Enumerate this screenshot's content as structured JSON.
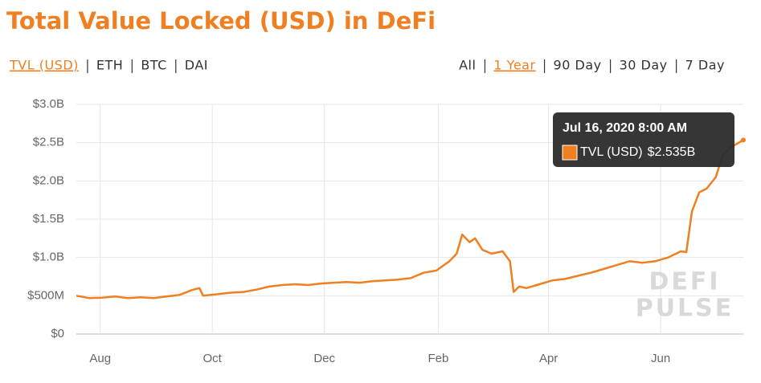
{
  "chart_data": {
    "type": "line",
    "title": "Total Value Locked (USD) in DeFi",
    "metric_tabs": [
      "TVL (USD)",
      "ETH",
      "BTC",
      "DAI"
    ],
    "active_metric_tab": 0,
    "range_tabs": [
      "All",
      "1 Year",
      "90 Day",
      "30 Day",
      "7 Day"
    ],
    "active_range_tab": 1,
    "watermark": [
      "DEFI",
      "PULSE"
    ],
    "grid": true,
    "x": [
      "2019-07-19",
      "2019-07-26",
      "2019-08-02",
      "2019-08-09",
      "2019-08-16",
      "2019-08-23",
      "2019-08-30",
      "2019-09-06",
      "2019-09-13",
      "2019-09-20",
      "2019-09-24",
      "2019-09-26",
      "2019-10-04",
      "2019-10-11",
      "2019-10-18",
      "2019-10-25",
      "2019-11-01",
      "2019-11-08",
      "2019-11-15",
      "2019-11-22",
      "2019-11-29",
      "2019-12-06",
      "2019-12-13",
      "2019-12-20",
      "2019-12-27",
      "2020-01-03",
      "2020-01-10",
      "2020-01-17",
      "2020-01-24",
      "2020-01-31",
      "2020-02-07",
      "2020-02-11",
      "2020-02-14",
      "2020-02-18",
      "2020-02-21",
      "2020-02-25",
      "2020-03-01",
      "2020-03-07",
      "2020-03-11",
      "2020-03-13",
      "2020-03-16",
      "2020-03-20",
      "2020-03-27",
      "2020-04-03",
      "2020-04-10",
      "2020-04-17",
      "2020-04-24",
      "2020-05-01",
      "2020-05-08",
      "2020-05-15",
      "2020-05-22",
      "2020-05-29",
      "2020-06-05",
      "2020-06-12",
      "2020-06-15",
      "2020-06-18",
      "2020-06-22",
      "2020-06-26",
      "2020-07-01",
      "2020-07-05",
      "2020-07-10",
      "2020-07-16"
    ],
    "series": [
      {
        "name": "TVL (USD)",
        "color": "#f07f22",
        "values": [
          500000000,
          470000000,
          475000000,
          490000000,
          470000000,
          480000000,
          470000000,
          490000000,
          510000000,
          575000000,
          600000000,
          500000000,
          520000000,
          540000000,
          550000000,
          580000000,
          620000000,
          640000000,
          650000000,
          640000000,
          660000000,
          670000000,
          680000000,
          670000000,
          690000000,
          700000000,
          710000000,
          730000000,
          800000000,
          830000000,
          950000000,
          1050000000,
          1300000000,
          1200000000,
          1250000000,
          1100000000,
          1050000000,
          1080000000,
          950000000,
          550000000,
          620000000,
          600000000,
          650000000,
          700000000,
          720000000,
          760000000,
          800000000,
          850000000,
          900000000,
          950000000,
          930000000,
          950000000,
          1000000000,
          1080000000,
          1070000000,
          1600000000,
          1850000000,
          1900000000,
          2050000000,
          2350000000,
          2450000000,
          2535000000
        ]
      }
    ],
    "xlim": [
      "2019-07-19",
      "2020-07-16"
    ],
    "xticks": [
      {
        "value": "2019-08-01",
        "label": "Aug"
      },
      {
        "value": "2019-10-01",
        "label": "Oct"
      },
      {
        "value": "2019-12-01",
        "label": "Dec"
      },
      {
        "value": "2020-02-01",
        "label": "Feb"
      },
      {
        "value": "2020-04-01",
        "label": "Apr"
      },
      {
        "value": "2020-06-01",
        "label": "Jun"
      }
    ],
    "ylim": [
      0,
      3000000000
    ],
    "yticks": [
      {
        "value": 0,
        "label": "$0"
      },
      {
        "value": 500000000,
        "label": "$500M"
      },
      {
        "value": 1000000000,
        "label": "$1.0B"
      },
      {
        "value": 1500000000,
        "label": "$1.5B"
      },
      {
        "value": 2000000000,
        "label": "$2.0B"
      },
      {
        "value": 2500000000,
        "label": "$2.5B"
      },
      {
        "value": 3000000000,
        "label": "$3.0B"
      }
    ],
    "tooltip": {
      "date": "Jul 16, 2020 8:00 AM",
      "value": 2535000000,
      "label": "$2.535B"
    }
  }
}
